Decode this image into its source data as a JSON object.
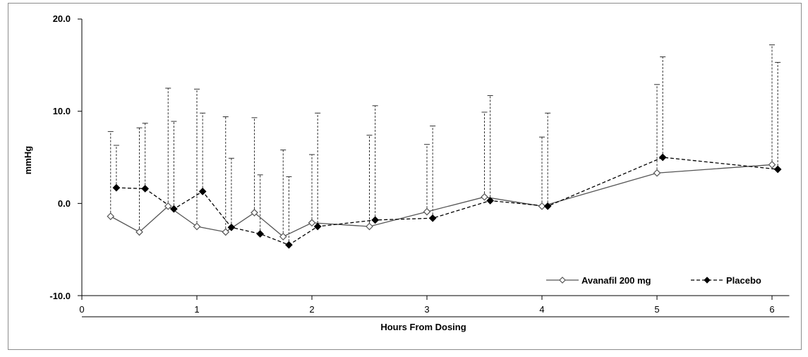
{
  "chart_data": {
    "type": "line",
    "title": "",
    "xlabel": "Hours From Dosing",
    "ylabel": "mmHg",
    "xlim": [
      0,
      6.15
    ],
    "ylim": [
      -10,
      20
    ],
    "y_ticks": [
      "20.0",
      "10.0",
      "0.0",
      "-10.0"
    ],
    "y_tick_values": [
      20,
      10,
      0,
      -10
    ],
    "x_ticks": [
      "0",
      "1",
      "2",
      "3",
      "4",
      "5",
      "6"
    ],
    "x_tick_values": [
      0,
      1,
      2,
      3,
      4,
      5,
      6
    ],
    "grid": false,
    "legend_position": "bottom-right",
    "error_bars": "upper only, dashed",
    "series": [
      {
        "name": "Avanafil 200 mg",
        "line_style": "solid",
        "marker": "open-diamond",
        "color": "#555555",
        "x": [
          0.25,
          0.5,
          0.75,
          1.0,
          1.25,
          1.5,
          1.75,
          2.0,
          2.5,
          3.0,
          3.5,
          4.0,
          5.0,
          6.0
        ],
        "y": [
          -1.4,
          -3.1,
          -0.3,
          -2.5,
          -3.1,
          -1.0,
          -3.6,
          -2.1,
          -2.5,
          -0.9,
          0.7,
          -0.3,
          3.3,
          4.2
        ],
        "upper": [
          7.8,
          8.2,
          12.5,
          12.4,
          9.4,
          9.3,
          5.8,
          5.3,
          7.4,
          6.4,
          9.9,
          7.2,
          12.9,
          17.2
        ]
      },
      {
        "name": "Placebo",
        "line_style": "dashed",
        "marker": "filled-diamond",
        "color": "#000000",
        "x": [
          0.3,
          0.55,
          0.8,
          1.05,
          1.3,
          1.55,
          1.8,
          2.05,
          2.55,
          3.05,
          3.55,
          4.05,
          5.05,
          6.05
        ],
        "y": [
          1.7,
          1.6,
          -0.6,
          1.3,
          -2.6,
          -3.3,
          -4.5,
          -2.5,
          -1.8,
          -1.6,
          0.3,
          -0.3,
          5.0,
          3.7
        ],
        "upper": [
          6.3,
          8.7,
          8.9,
          9.8,
          4.9,
          3.1,
          2.9,
          9.8,
          10.6,
          8.4,
          11.7,
          9.8,
          15.9,
          15.3
        ]
      }
    ]
  }
}
